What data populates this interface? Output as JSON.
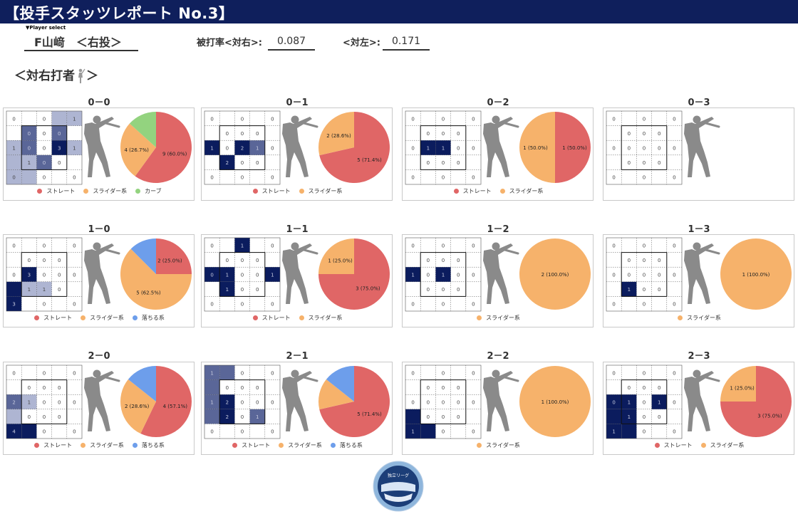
{
  "header": {
    "title": "【投手スタッツレポート No.3】",
    "player_select": "▼Player select",
    "player": "F山﨑　＜右投＞",
    "stat1_label": "被打率<対右>:",
    "stat1_value": "0.087",
    "stat2_label": "<対左>:",
    "stat2_value": "0.171",
    "section": "＜対右打者",
    "section_end": "＞"
  },
  "colors": {
    "banner": "#0f1f5c",
    "straight": "#e06666",
    "slider": "#f6b26b",
    "curve": "#93d37f",
    "drop": "#6d9eeb",
    "cell_dark": "#0b1c5e",
    "cell_mid": "#5a6698",
    "cell_light": "#aeb5d2",
    "batter": "#8a8a8a"
  },
  "legend_names": {
    "straight": "ストレート",
    "slider": "スライダー系",
    "curve": "カーブ",
    "drop": "落ちる系"
  },
  "panels": [
    {
      "count": "0－0",
      "zone": [
        [
          0,
          "",
          0,
          "",
          1
        ],
        [
          "",
          0,
          0,
          0,
          ""
        ],
        [
          1,
          0,
          0,
          3,
          1
        ],
        [
          "",
          1,
          0,
          0,
          ""
        ],
        [
          0,
          "",
          0,
          "",
          0
        ]
      ],
      "shade": [
        [
          0,
          0,
          0,
          1,
          1
        ],
        [
          0,
          2,
          0,
          2,
          0
        ],
        [
          1,
          2,
          0,
          3,
          1
        ],
        [
          1,
          1,
          2,
          0,
          0
        ],
        [
          1,
          1,
          0,
          0,
          0
        ]
      ],
      "pie": [
        {
          "key": "straight",
          "value": 9,
          "label": "9 (60.0%)"
        },
        {
          "key": "slider",
          "value": 4,
          "label": "4 (26.7%)"
        },
        {
          "key": "curve",
          "value": 2,
          "label": ""
        }
      ],
      "legend": [
        "straight",
        "slider",
        "curve"
      ]
    },
    {
      "count": "0－1",
      "zone": [
        [
          0,
          "",
          0,
          "",
          0
        ],
        [
          "",
          0,
          0,
          0,
          ""
        ],
        [
          1,
          0,
          2,
          1,
          0
        ],
        [
          "",
          2,
          0,
          0,
          ""
        ],
        [
          0,
          "",
          0,
          "",
          0
        ]
      ],
      "shade": [
        [
          0,
          0,
          0,
          0,
          0
        ],
        [
          0,
          0,
          0,
          0,
          0
        ],
        [
          3,
          0,
          3,
          2,
          0
        ],
        [
          0,
          3,
          0,
          0,
          0
        ],
        [
          0,
          0,
          0,
          0,
          0
        ]
      ],
      "pie": [
        {
          "key": "straight",
          "value": 5,
          "label": "5 (71.4%)"
        },
        {
          "key": "slider",
          "value": 2,
          "label": "2 (28.6%)"
        }
      ],
      "legend": [
        "straight",
        "slider"
      ]
    },
    {
      "count": "0－2",
      "zone": [
        [
          0,
          "",
          0,
          "",
          0
        ],
        [
          "",
          0,
          0,
          0,
          ""
        ],
        [
          0,
          1,
          1,
          0,
          0
        ],
        [
          "",
          0,
          0,
          0,
          ""
        ],
        [
          0,
          "",
          0,
          "",
          0
        ]
      ],
      "shade": [
        [
          0,
          0,
          0,
          0,
          0
        ],
        [
          0,
          0,
          0,
          0,
          0
        ],
        [
          0,
          3,
          3,
          0,
          0
        ],
        [
          0,
          0,
          0,
          0,
          0
        ],
        [
          0,
          0,
          0,
          0,
          0
        ]
      ],
      "pie": [
        {
          "key": "straight",
          "value": 1,
          "label": "1 (50.0%)"
        },
        {
          "key": "slider",
          "value": 1,
          "label": "1 (50.0%)"
        }
      ],
      "legend": [
        "straight",
        "slider"
      ]
    },
    {
      "count": "0－3",
      "zone": [
        [
          0,
          "",
          0,
          "",
          0
        ],
        [
          "",
          0,
          0,
          0,
          ""
        ],
        [
          0,
          0,
          0,
          0,
          0
        ],
        [
          "",
          0,
          0,
          0,
          ""
        ],
        [
          0,
          "",
          0,
          "",
          0
        ]
      ],
      "shade": [
        [
          0,
          0,
          0,
          0,
          0
        ],
        [
          0,
          0,
          0,
          0,
          0
        ],
        [
          0,
          0,
          0,
          0,
          0
        ],
        [
          0,
          0,
          0,
          0,
          0
        ],
        [
          0,
          0,
          0,
          0,
          0
        ]
      ],
      "pie": [],
      "legend": []
    },
    {
      "count": "1－0",
      "zone": [
        [
          0,
          "",
          0,
          "",
          0
        ],
        [
          "",
          0,
          0,
          0,
          ""
        ],
        [
          0,
          3,
          0,
          0,
          0
        ],
        [
          "",
          1,
          1,
          0,
          ""
        ],
        [
          3,
          "",
          0,
          "",
          0
        ]
      ],
      "shade": [
        [
          0,
          0,
          0,
          0,
          0
        ],
        [
          0,
          0,
          0,
          0,
          0
        ],
        [
          0,
          3,
          0,
          0,
          0
        ],
        [
          3,
          1,
          1,
          0,
          0
        ],
        [
          3,
          0,
          0,
          0,
          0
        ]
      ],
      "pie": [
        {
          "key": "straight",
          "value": 2,
          "label": "2 (25.0%)"
        },
        {
          "key": "slider",
          "value": 5,
          "label": "5 (62.5%)"
        },
        {
          "key": "drop",
          "value": 1,
          "label": ""
        }
      ],
      "legend": [
        "straight",
        "slider",
        "drop"
      ]
    },
    {
      "count": "1－1",
      "zone": [
        [
          0,
          "",
          1,
          "",
          0
        ],
        [
          "",
          0,
          0,
          0,
          ""
        ],
        [
          0,
          1,
          0,
          0,
          1
        ],
        [
          "",
          1,
          0,
          0,
          ""
        ],
        [
          0,
          "",
          0,
          "",
          0
        ]
      ],
      "shade": [
        [
          0,
          0,
          3,
          0,
          0
        ],
        [
          0,
          0,
          0,
          0,
          0
        ],
        [
          3,
          3,
          0,
          0,
          3
        ],
        [
          0,
          3,
          0,
          0,
          0
        ],
        [
          0,
          0,
          0,
          0,
          0
        ]
      ],
      "pie": [
        {
          "key": "straight",
          "value": 3,
          "label": "3 (75.0%)"
        },
        {
          "key": "slider",
          "value": 1,
          "label": "1 (25.0%)"
        }
      ],
      "legend": [
        "straight",
        "slider"
      ]
    },
    {
      "count": "1－2",
      "zone": [
        [
          0,
          "",
          0,
          "",
          0
        ],
        [
          "",
          0,
          0,
          0,
          ""
        ],
        [
          1,
          0,
          1,
          0,
          0
        ],
        [
          "",
          0,
          0,
          0,
          ""
        ],
        [
          0,
          "",
          0,
          "",
          0
        ]
      ],
      "shade": [
        [
          0,
          0,
          0,
          0,
          0
        ],
        [
          0,
          0,
          0,
          0,
          0
        ],
        [
          3,
          0,
          3,
          0,
          0
        ],
        [
          0,
          0,
          0,
          0,
          0
        ],
        [
          0,
          0,
          0,
          0,
          0
        ]
      ],
      "pie": [
        {
          "key": "slider",
          "value": 2,
          "label": "2 (100.0%)"
        }
      ],
      "legend": [
        "slider"
      ]
    },
    {
      "count": "1－3",
      "zone": [
        [
          0,
          "",
          0,
          "",
          0
        ],
        [
          "",
          0,
          0,
          0,
          ""
        ],
        [
          0,
          0,
          0,
          0,
          0
        ],
        [
          "",
          1,
          0,
          0,
          ""
        ],
        [
          0,
          "",
          0,
          "",
          0
        ]
      ],
      "shade": [
        [
          0,
          0,
          0,
          0,
          0
        ],
        [
          0,
          0,
          0,
          0,
          0
        ],
        [
          0,
          0,
          0,
          0,
          0
        ],
        [
          0,
          3,
          0,
          0,
          0
        ],
        [
          0,
          0,
          0,
          0,
          0
        ]
      ],
      "pie": [
        {
          "key": "slider",
          "value": 1,
          "label": "1 (100.0%)"
        }
      ],
      "legend": [
        "slider"
      ]
    },
    {
      "count": "2－0",
      "zone": [
        [
          0,
          "",
          0,
          "",
          0
        ],
        [
          "",
          0,
          0,
          0,
          ""
        ],
        [
          2,
          1,
          0,
          0,
          0
        ],
        [
          "",
          0,
          0,
          0,
          ""
        ],
        [
          4,
          "",
          0,
          "",
          0
        ]
      ],
      "shade": [
        [
          0,
          0,
          0,
          0,
          0
        ],
        [
          0,
          0,
          0,
          0,
          0
        ],
        [
          2,
          1,
          0,
          0,
          0
        ],
        [
          1,
          0,
          0,
          0,
          0
        ],
        [
          3,
          3,
          0,
          0,
          0
        ]
      ],
      "pie": [
        {
          "key": "straight",
          "value": 4,
          "label": "4 (57.1%)"
        },
        {
          "key": "slider",
          "value": 2,
          "label": "2 (28.6%)"
        },
        {
          "key": "drop",
          "value": 1,
          "label": ""
        }
      ],
      "legend": [
        "straight",
        "slider",
        "drop"
      ]
    },
    {
      "count": "2－1",
      "zone": [
        [
          1,
          "",
          0,
          "",
          0
        ],
        [
          "",
          0,
          0,
          0,
          ""
        ],
        [
          1,
          2,
          0,
          0,
          0
        ],
        [
          "",
          2,
          0,
          1,
          ""
        ],
        [
          0,
          "",
          0,
          "",
          0
        ]
      ],
      "shade": [
        [
          2,
          2,
          0,
          0,
          0
        ],
        [
          2,
          0,
          0,
          0,
          0
        ],
        [
          2,
          3,
          0,
          0,
          0
        ],
        [
          2,
          3,
          0,
          2,
          0
        ],
        [
          0,
          0,
          0,
          0,
          0
        ]
      ],
      "pie": [
        {
          "key": "straight",
          "value": 5,
          "label": "5 (71.4%)"
        },
        {
          "key": "slider",
          "value": 1,
          "label": ""
        },
        {
          "key": "drop",
          "value": 1,
          "label": ""
        }
      ],
      "legend": [
        "straight",
        "slider",
        "drop"
      ]
    },
    {
      "count": "2－2",
      "zone": [
        [
          0,
          "",
          0,
          "",
          0
        ],
        [
          "",
          0,
          0,
          0,
          ""
        ],
        [
          0,
          0,
          0,
          0,
          0
        ],
        [
          "",
          0,
          0,
          0,
          ""
        ],
        [
          1,
          "",
          0,
          "",
          0
        ]
      ],
      "shade": [
        [
          0,
          0,
          0,
          0,
          0
        ],
        [
          0,
          0,
          0,
          0,
          0
        ],
        [
          0,
          0,
          0,
          0,
          0
        ],
        [
          3,
          0,
          0,
          0,
          0
        ],
        [
          3,
          3,
          0,
          0,
          0
        ]
      ],
      "pie": [
        {
          "key": "slider",
          "value": 1,
          "label": "1 (100.0%)"
        }
      ],
      "legend": [
        "slider"
      ]
    },
    {
      "count": "2－3",
      "zone": [
        [
          0,
          "",
          0,
          "",
          0
        ],
        [
          "",
          0,
          0,
          0,
          ""
        ],
        [
          0,
          1,
          0,
          1,
          0
        ],
        [
          "",
          1,
          0,
          0,
          ""
        ],
        [
          1,
          "",
          0,
          "",
          0
        ]
      ],
      "shade": [
        [
          0,
          0,
          0,
          0,
          0
        ],
        [
          0,
          0,
          0,
          0,
          0
        ],
        [
          3,
          3,
          0,
          3,
          0
        ],
        [
          3,
          3,
          0,
          0,
          0
        ],
        [
          3,
          3,
          0,
          0,
          0
        ]
      ],
      "pie": [
        {
          "key": "straight",
          "value": 3,
          "label": "3 (75.0%)"
        },
        {
          "key": "slider",
          "value": 1,
          "label": "1 (25.0%)"
        }
      ],
      "legend": [
        "straight",
        "slider"
      ]
    }
  ],
  "logo_text": "独立リーグ"
}
